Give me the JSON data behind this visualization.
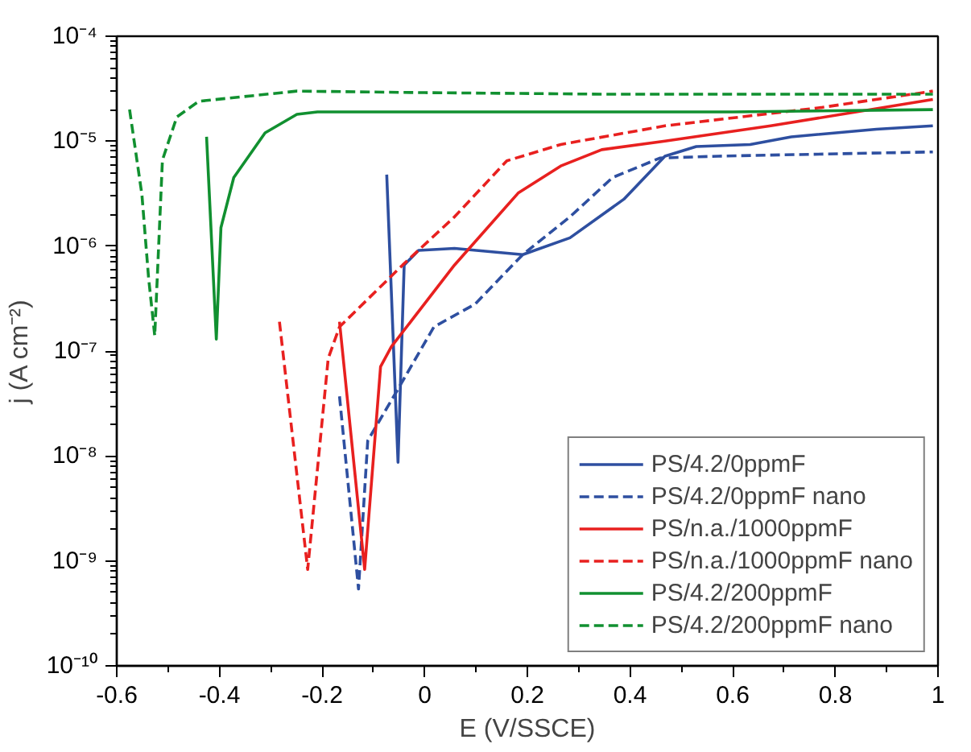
{
  "chart_data": {
    "type": "line",
    "xlabel": "E (V/SSCE)",
    "ylabel": "j (A cm⁻²)",
    "log": "y",
    "xlim": [
      -0.6,
      1.0
    ],
    "xticks": [
      -0.6,
      -0.4,
      -0.2,
      0,
      0.2,
      0.4,
      0.6,
      0.8,
      1
    ],
    "ylim": [
      1e-10,
      0.0001
    ],
    "yticks": [
      {
        "value": 1e-10,
        "label": "10⁻¹⁰"
      },
      {
        "value": 1e-09,
        "label": "10⁻⁹"
      },
      {
        "value": 1e-08,
        "label": "10⁻⁸"
      },
      {
        "value": 1e-07,
        "label": "10⁻⁷"
      },
      {
        "value": 1e-06,
        "label": "10⁻⁶"
      },
      {
        "value": 1e-05,
        "label": "10⁻⁵"
      },
      {
        "value": 0.0001,
        "label": "10⁻⁴"
      }
    ],
    "grid": false,
    "legend": "bottom right",
    "marker": "none",
    "series": [
      {
        "name": "PS/4.2/0ppmF",
        "color": "#2e4fa0",
        "line_style": "solid",
        "x": [
          -0.074,
          -0.052,
          -0.04,
          -0.012,
          0.058,
          0.191,
          0.283,
          0.388,
          0.468,
          0.529,
          0.634,
          0.714,
          0.88,
          0.99
        ],
        "values": [
          4.8e-06,
          8.7e-09,
          6.6e-07,
          9.1e-07,
          9.5e-07,
          8.3e-07,
          1.2e-06,
          2.8e-06,
          7.2e-06,
          8.9e-06,
          9.3e-06,
          1.1e-05,
          1.3e-05,
          1.4e-05
        ]
      },
      {
        "name": "PS/4.2/0ppmF nano",
        "color": "#2e4fa0",
        "line_style": "dashed",
        "x": [
          -0.166,
          -0.129,
          -0.111,
          -0.055,
          0.018,
          0.098,
          0.191,
          0.283,
          0.366,
          0.458,
          0.572,
          0.99
        ],
        "values": [
          3.7e-08,
          5.4e-10,
          1.4e-08,
          4.1e-08,
          1.7e-07,
          2.8e-07,
          8.3e-07,
          1.9e-06,
          4.5e-06,
          6.9e-06,
          7.2e-06,
          7.9e-06
        ]
      },
      {
        "name": "PS/n.a./1000ppmF",
        "color": "#e8201f",
        "line_style": "solid",
        "x": [
          -0.166,
          -0.117,
          -0.086,
          -0.065,
          0.058,
          0.182,
          0.265,
          0.345,
          0.468,
          0.674,
          0.99
        ],
        "values": [
          1.9e-07,
          8.3e-10,
          7.1e-08,
          1.1e-07,
          6.6e-07,
          3.2e-06,
          5.8e-06,
          8.3e-06,
          1e-05,
          1.4e-05,
          2.5e-05
        ]
      },
      {
        "name": "PS/n.a./1000ppmF nano",
        "color": "#e8201f",
        "line_style": "dashed",
        "x": [
          -0.283,
          -0.228,
          -0.188,
          -0.166,
          -0.043,
          0.058,
          0.16,
          0.265,
          0.468,
          0.775,
          0.99
        ],
        "values": [
          1.9e-07,
          8.3e-10,
          8.5e-08,
          1.7e-07,
          6.6e-07,
          1.9e-06,
          6.5e-06,
          9.3e-06,
          1.4e-05,
          2.1e-05,
          3e-05
        ]
      },
      {
        "name": "PS/4.2/200ppmF",
        "color": "#119030",
        "line_style": "solid",
        "x": [
          -0.425,
          -0.406,
          -0.397,
          -0.372,
          -0.311,
          -0.249,
          -0.209,
          0.2,
          0.6,
          0.99
        ],
        "values": [
          1.1e-05,
          1.3e-07,
          1.5e-06,
          4.5e-06,
          1.2e-05,
          1.8e-05,
          1.9e-05,
          1.9e-05,
          1.9e-05,
          2e-05
        ]
      },
      {
        "name": "PS/4.2/200ppmF nano",
        "color": "#119030",
        "line_style": "dashed",
        "x": [
          -0.575,
          -0.551,
          -0.538,
          -0.526,
          -0.511,
          -0.483,
          -0.44,
          -0.249,
          0,
          0.366,
          0.99
        ],
        "values": [
          2e-05,
          3.1e-06,
          5e-07,
          1.4e-07,
          6.6e-06,
          1.7e-05,
          2.4e-05,
          3e-05,
          2.9e-05,
          2.8e-05,
          2.8e-05
        ]
      }
    ]
  }
}
